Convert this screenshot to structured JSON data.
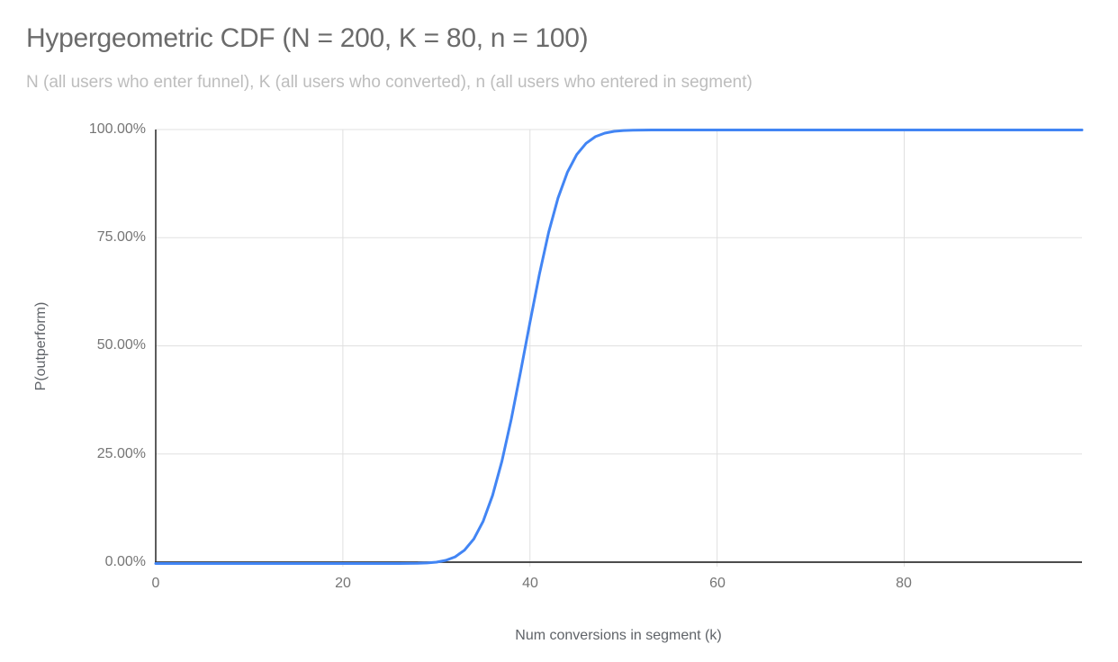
{
  "chart_data": {
    "type": "line",
    "title": "Hypergeometric CDF (N = 200, K = 80, n = 100)",
    "subtitle": "N (all users who enter funnel), K (all users who converted), n (all users who entered in segment)",
    "xlabel": "Num conversions in segment (k)",
    "ylabel": "P(outperform)",
    "xlim": [
      0,
      99
    ],
    "ylim": [
      0,
      1
    ],
    "grid": true,
    "legend": "none",
    "x_tick_values": [
      0,
      20,
      40,
      60,
      80
    ],
    "x_tick_labels": [
      "0",
      "20",
      "40",
      "60",
      "80"
    ],
    "y_tick_values": [
      1,
      0.75,
      0.5,
      0.25,
      0
    ],
    "y_tick_labels": [
      "100.00%",
      "75.00%",
      "50.00%",
      "25.00%",
      "0.00%"
    ],
    "line_color": "#4285f4",
    "grid_color": "#e0e0e0",
    "axis_line_color": "#333333",
    "series": [
      {
        "name": "P(outperform)",
        "x_start": 0,
        "x_step": 1,
        "y": [
          0,
          0,
          0,
          0,
          0,
          0,
          0,
          0,
          0,
          0,
          0,
          0,
          0,
          0,
          0,
          0,
          0,
          0,
          0,
          0,
          0,
          0,
          0,
          0,
          0,
          1e-05,
          5e-05,
          0.00016,
          0.0005,
          0.0012,
          0.0031,
          0.0072,
          0.0154,
          0.0307,
          0.0567,
          0.0977,
          0.157,
          0.236,
          0.3332,
          0.4431,
          0.5569,
          0.6668,
          0.764,
          0.843,
          0.9023,
          0.9433,
          0.9693,
          0.9846,
          0.9928,
          0.9969,
          0.9987,
          0.9995,
          0.9998,
          0.9999,
          1,
          1,
          1,
          1,
          1,
          1,
          1,
          1,
          1,
          1,
          1,
          1,
          1,
          1,
          1,
          1,
          1,
          1,
          1,
          1,
          1,
          1,
          1,
          1,
          1,
          1,
          1,
          1,
          1,
          1,
          1,
          1,
          1,
          1,
          1,
          1,
          1,
          1,
          1,
          1,
          1,
          1,
          1,
          1,
          1,
          1
        ]
      }
    ]
  }
}
